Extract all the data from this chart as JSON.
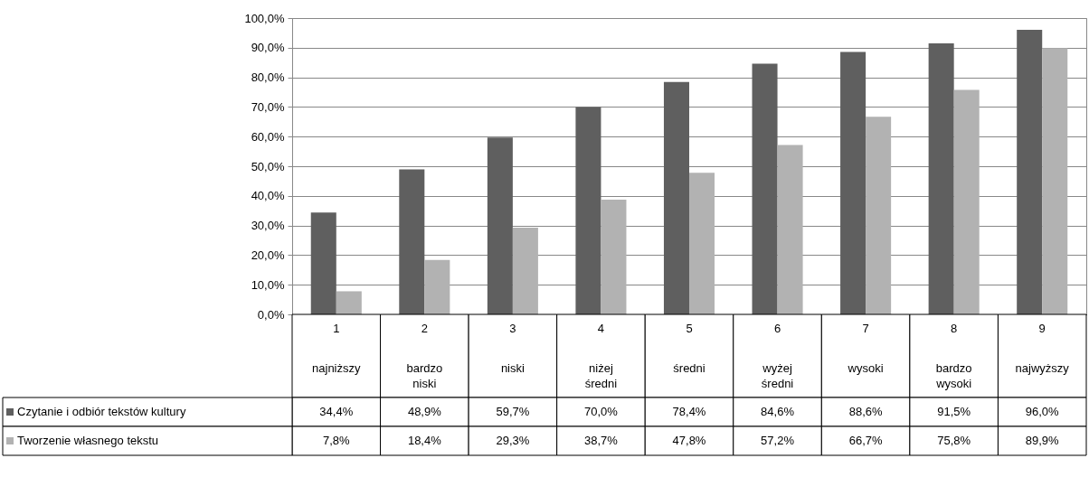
{
  "chart_data": {
    "type": "bar",
    "categories": [
      "1\nnajniższy",
      "2\nbardzo niski",
      "3\nniski",
      "4\nniżej średni",
      "5\nśredni",
      "6\nwyżej średni",
      "7\nwysoki",
      "8\nbardzo wysoki",
      "9\nnajwyższy"
    ],
    "series": [
      {
        "name": "Czytanie i odbiór tekstów kultury",
        "color": "#5f5f5f",
        "values": [
          34.4,
          48.9,
          59.7,
          70.0,
          78.4,
          84.6,
          88.6,
          91.5,
          96.0
        ],
        "value_labels": [
          "34,4%",
          "48,9%",
          "59,7%",
          "70,0%",
          "78,4%",
          "84,6%",
          "88,6%",
          "91,5%",
          "96,0%"
        ]
      },
      {
        "name": "Tworzenie własnego tekstu",
        "color": "#b2b2b2",
        "values": [
          7.8,
          18.4,
          29.3,
          38.7,
          47.8,
          57.2,
          66.7,
          75.8,
          89.9
        ],
        "value_labels": [
          "7,8%",
          "18,4%",
          "29,3%",
          "38,7%",
          "47,8%",
          "57,2%",
          "66,7%",
          "75,8%",
          "89,9%"
        ]
      }
    ],
    "ylim": [
      0,
      100
    ],
    "yticks": [
      {
        "value": 0,
        "label": "0,0%"
      },
      {
        "value": 10,
        "label": "10,0%"
      },
      {
        "value": 20,
        "label": "20,0%"
      },
      {
        "value": 30,
        "label": "30,0%"
      },
      {
        "value": 40,
        "label": "40,0%"
      },
      {
        "value": 50,
        "label": "50,0%"
      },
      {
        "value": 60,
        "label": "60,0%"
      },
      {
        "value": 70,
        "label": "70,0%"
      },
      {
        "value": 80,
        "label": "80,0%"
      },
      {
        "value": 90,
        "label": "90,0%"
      },
      {
        "value": 100,
        "label": "100,0%"
      }
    ],
    "grid": "y",
    "legend": "bottom left"
  }
}
